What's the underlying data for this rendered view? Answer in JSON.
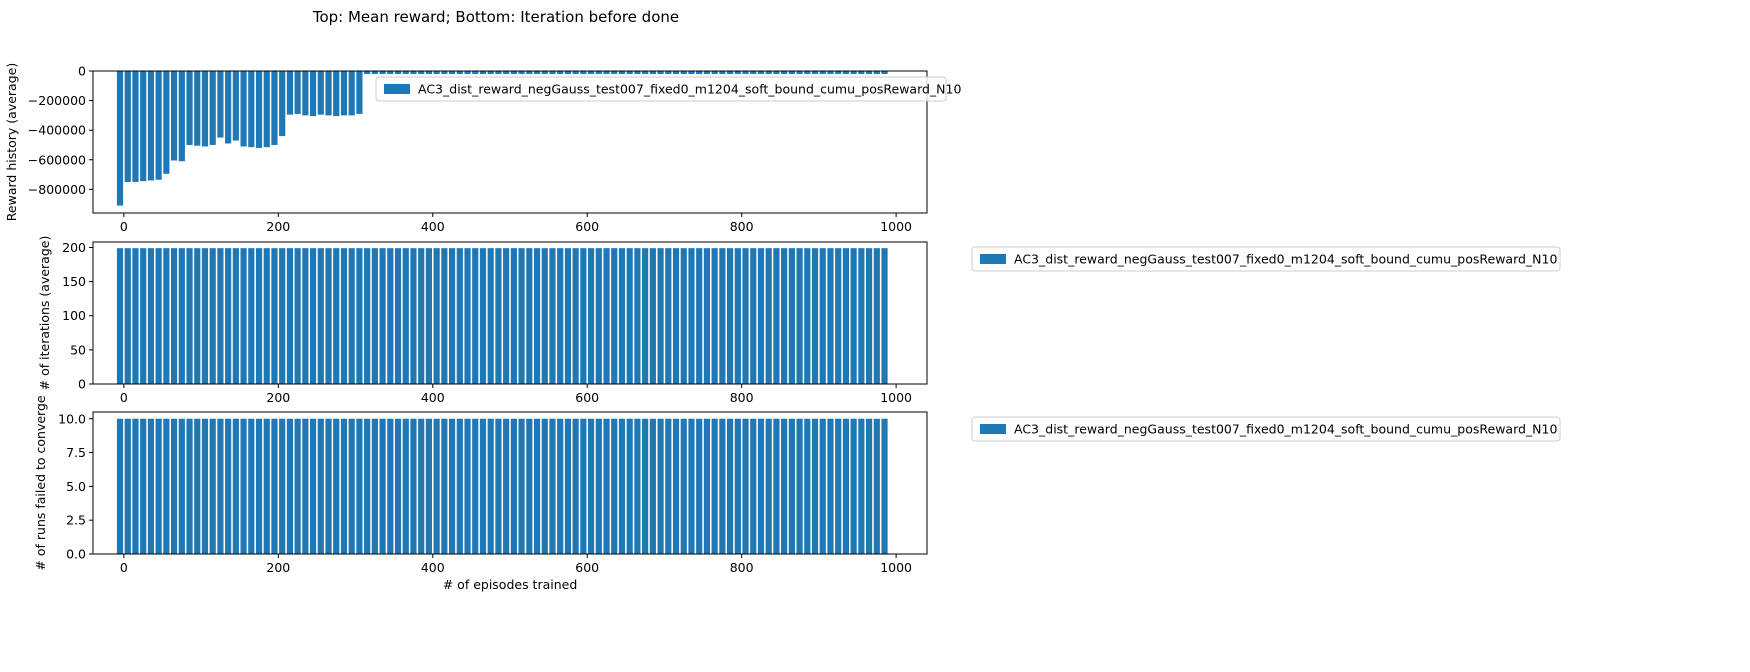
{
  "figure": {
    "suptitle": "Top: Mean reward; Bottom: Iteration before done",
    "bar_color": "#1f77b4"
  },
  "chart_data": [
    {
      "type": "bar",
      "ylabel": "Reward history (average)",
      "xlabel": "",
      "xlim": [
        -40,
        1040
      ],
      "ylim": [
        -960000,
        0
      ],
      "xticks": [
        0,
        200,
        400,
        600,
        800,
        1000
      ],
      "xtick_labels": [
        "0",
        "200",
        "400",
        "600",
        "800",
        "1000"
      ],
      "yticks": [
        0,
        -200000,
        -400000,
        -600000,
        -800000
      ],
      "ytick_labels": [
        "0",
        "−200000",
        "−400000",
        "−600000",
        "−800000"
      ],
      "legend": "right-of-axes-top",
      "series": [
        {
          "name": "AC3_dist_reward_negGauss_test007_fixed0_m1204_soft_bound_cumu_posReward_N10",
          "x": [
            -5,
            5,
            15,
            25,
            35,
            45,
            55,
            65,
            75,
            85,
            95,
            105,
            115,
            125,
            135,
            145,
            155,
            165,
            175,
            185,
            195,
            205,
            215,
            225,
            235,
            245,
            255,
            265,
            275,
            285,
            295,
            305,
            315,
            325,
            335,
            345,
            355,
            365,
            375,
            385,
            395,
            405,
            415,
            425,
            435,
            445,
            455,
            465,
            475,
            485,
            495,
            505,
            515,
            525,
            535,
            545,
            555,
            565,
            575,
            585,
            595,
            605,
            615,
            625,
            635,
            645,
            655,
            665,
            675,
            685,
            695,
            705,
            715,
            725,
            735,
            745,
            755,
            765,
            775,
            785,
            795,
            805,
            815,
            825,
            835,
            845,
            855,
            865,
            875,
            885,
            895,
            905,
            915,
            925,
            935,
            945,
            955,
            965,
            975,
            985
          ],
          "values": [
            -910000,
            -750000,
            -750000,
            -745000,
            -740000,
            -735000,
            -695000,
            -605000,
            -610000,
            -500000,
            -505000,
            -510000,
            -500000,
            -450000,
            -490000,
            -470000,
            -510000,
            -515000,
            -520000,
            -515000,
            -500000,
            -440000,
            -295000,
            -290000,
            -300000,
            -305000,
            -295000,
            -300000,
            -305000,
            -300000,
            -300000,
            -290000,
            -20000,
            -20000,
            -20000,
            -20000,
            -20000,
            -20000,
            -20000,
            -20000,
            -20000,
            -20000,
            -20000,
            -20000,
            -20000,
            -20000,
            -20000,
            -20000,
            -20000,
            -20000,
            -20000,
            -20000,
            -20000,
            -20000,
            -20000,
            -20000,
            -20000,
            -20000,
            -20000,
            -20000,
            -20000,
            -20000,
            -20000,
            -20000,
            -20000,
            -20000,
            -20000,
            -20000,
            -20000,
            -20000,
            -20000,
            -20000,
            -20000,
            -20000,
            -20000,
            -20000,
            -20000,
            -20000,
            -20000,
            -20000,
            -20000,
            -20000,
            -20000,
            -20000,
            -20000,
            -20000,
            -20000,
            -20000,
            -20000,
            -20000,
            -20000,
            -20000,
            -20000,
            -20000,
            -20000,
            -20000,
            -20000,
            -20000,
            -20000,
            -20000
          ]
        }
      ]
    },
    {
      "type": "bar",
      "ylabel": "# of iterations (average)",
      "xlabel": "",
      "xlim": [
        -40,
        1040
      ],
      "ylim": [
        0,
        208
      ],
      "xticks": [
        0,
        200,
        400,
        600,
        800,
        1000
      ],
      "xtick_labels": [
        "0",
        "200",
        "400",
        "600",
        "800",
        "1000"
      ],
      "yticks": [
        0,
        50,
        100,
        150,
        200
      ],
      "ytick_labels": [
        "0",
        "50",
        "100",
        "150",
        "200"
      ],
      "legend": "right-of-axes-top",
      "series": [
        {
          "name": "AC3_dist_reward_negGauss_test007_fixed0_m1204_soft_bound_cumu_posReward_N10",
          "x": [
            -5,
            5,
            15,
            25,
            35,
            45,
            55,
            65,
            75,
            85,
            95,
            105,
            115,
            125,
            135,
            145,
            155,
            165,
            175,
            185,
            195,
            205,
            215,
            225,
            235,
            245,
            255,
            265,
            275,
            285,
            295,
            305,
            315,
            325,
            335,
            345,
            355,
            365,
            375,
            385,
            395,
            405,
            415,
            425,
            435,
            445,
            455,
            465,
            475,
            485,
            495,
            505,
            515,
            525,
            535,
            545,
            555,
            565,
            575,
            585,
            595,
            605,
            615,
            625,
            635,
            645,
            655,
            665,
            675,
            685,
            695,
            705,
            715,
            725,
            735,
            745,
            755,
            765,
            775,
            785,
            795,
            805,
            815,
            825,
            835,
            845,
            855,
            865,
            875,
            885,
            895,
            905,
            915,
            925,
            935,
            945,
            955,
            965,
            975,
            985
          ],
          "values": [
            199,
            199,
            199,
            199,
            199,
            199,
            199,
            199,
            199,
            199,
            199,
            199,
            199,
            199,
            199,
            199,
            199,
            199,
            199,
            199,
            199,
            199,
            199,
            199,
            199,
            199,
            199,
            199,
            199,
            199,
            199,
            199,
            199,
            199,
            199,
            199,
            199,
            199,
            199,
            199,
            199,
            199,
            199,
            199,
            199,
            199,
            199,
            199,
            199,
            199,
            199,
            199,
            199,
            199,
            199,
            199,
            199,
            199,
            199,
            199,
            199,
            199,
            199,
            199,
            199,
            199,
            199,
            199,
            199,
            199,
            199,
            199,
            199,
            199,
            199,
            199,
            199,
            199,
            199,
            199,
            199,
            199,
            199,
            199,
            199,
            199,
            199,
            199,
            199,
            199,
            199,
            199,
            199,
            199,
            199,
            199,
            199,
            199,
            199,
            199
          ]
        }
      ]
    },
    {
      "type": "bar",
      "ylabel": "# of runs failed to converge",
      "xlabel": "# of episodes trained",
      "xlim": [
        -40,
        1040
      ],
      "ylim": [
        0,
        10.5
      ],
      "xticks": [
        0,
        200,
        400,
        600,
        800,
        1000
      ],
      "xtick_labels": [
        "0",
        "200",
        "400",
        "600",
        "800",
        "1000"
      ],
      "yticks": [
        0,
        2.5,
        5,
        7.5,
        10
      ],
      "ytick_labels": [
        "0.0",
        "2.5",
        "5.0",
        "7.5",
        "10.0"
      ],
      "legend": "right-of-axes-top",
      "series": [
        {
          "name": "AC3_dist_reward_negGauss_test007_fixed0_m1204_soft_bound_cumu_posReward_N10",
          "x": [
            -5,
            5,
            15,
            25,
            35,
            45,
            55,
            65,
            75,
            85,
            95,
            105,
            115,
            125,
            135,
            145,
            155,
            165,
            175,
            185,
            195,
            205,
            215,
            225,
            235,
            245,
            255,
            265,
            275,
            285,
            295,
            305,
            315,
            325,
            335,
            345,
            355,
            365,
            375,
            385,
            395,
            405,
            415,
            425,
            435,
            445,
            455,
            465,
            475,
            485,
            495,
            505,
            515,
            525,
            535,
            545,
            555,
            565,
            575,
            585,
            595,
            605,
            615,
            625,
            635,
            645,
            655,
            665,
            675,
            685,
            695,
            705,
            715,
            725,
            735,
            745,
            755,
            765,
            775,
            785,
            795,
            805,
            815,
            825,
            835,
            845,
            855,
            865,
            875,
            885,
            895,
            905,
            915,
            925,
            935,
            945,
            955,
            965,
            975,
            985
          ],
          "values": [
            10,
            10,
            10,
            10,
            10,
            10,
            10,
            10,
            10,
            10,
            10,
            10,
            10,
            10,
            10,
            10,
            10,
            10,
            10,
            10,
            10,
            10,
            10,
            10,
            10,
            10,
            10,
            10,
            10,
            10,
            10,
            10,
            10,
            10,
            10,
            10,
            10,
            10,
            10,
            10,
            10,
            10,
            10,
            10,
            10,
            10,
            10,
            10,
            10,
            10,
            10,
            10,
            10,
            10,
            10,
            10,
            10,
            10,
            10,
            10,
            10,
            10,
            10,
            10,
            10,
            10,
            10,
            10,
            10,
            10,
            10,
            10,
            10,
            10,
            10,
            10,
            10,
            10,
            10,
            10,
            10,
            10,
            10,
            10,
            10,
            10,
            10,
            10,
            10,
            10,
            10,
            10,
            10,
            10,
            10,
            10,
            10,
            10,
            10,
            10
          ]
        }
      ]
    }
  ]
}
